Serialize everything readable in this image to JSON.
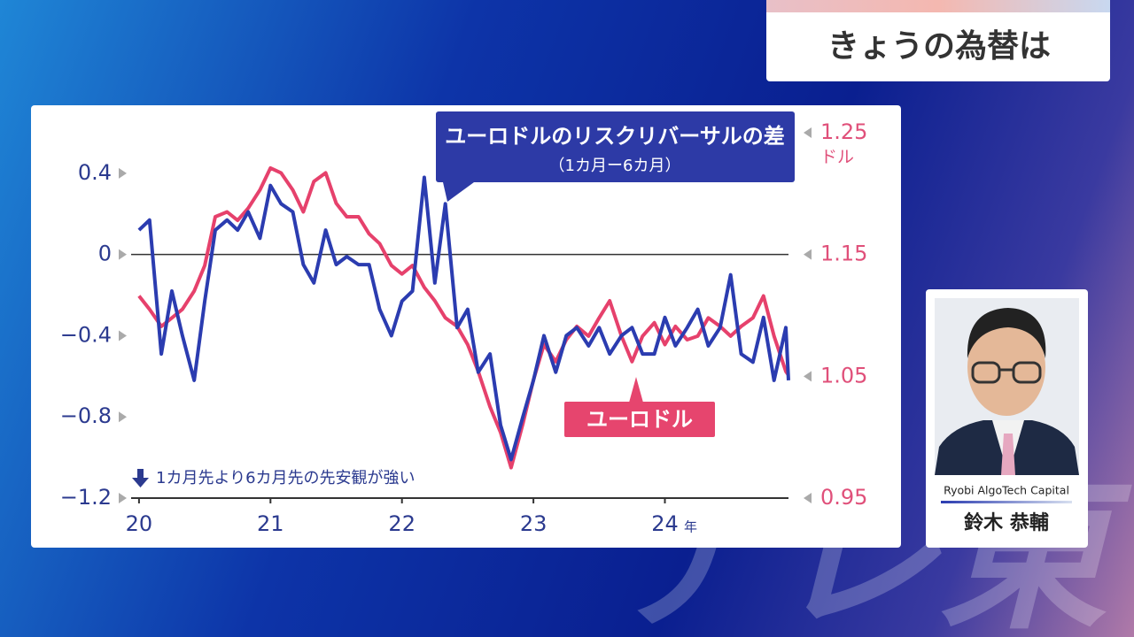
{
  "header": {
    "title": "きょうの為替は"
  },
  "watermark": "テレ東",
  "person": {
    "company": "Ryobi AlgoTech Capital",
    "name": "鈴木 恭輔"
  },
  "chart_data": {
    "type": "line",
    "x": [
      2020.0,
      2020.08,
      2020.17,
      2020.25,
      2020.33,
      2020.42,
      2020.5,
      2020.58,
      2020.67,
      2020.75,
      2020.83,
      2020.92,
      2021.0,
      2021.08,
      2021.17,
      2021.25,
      2021.33,
      2021.42,
      2021.5,
      2021.58,
      2021.67,
      2021.75,
      2021.83,
      2021.92,
      2022.0,
      2022.08,
      2022.17,
      2022.25,
      2022.33,
      2022.42,
      2022.5,
      2022.58,
      2022.67,
      2022.75,
      2022.83,
      2022.92,
      2023.0,
      2023.08,
      2023.17,
      2023.25,
      2023.33,
      2023.42,
      2023.5,
      2023.58,
      2023.67,
      2023.75,
      2023.83,
      2023.92,
      2024.0,
      2024.08,
      2024.17,
      2024.25,
      2024.33,
      2024.42,
      2024.5,
      2024.58,
      2024.67,
      2024.75,
      2024.83,
      2024.92,
      2024.94
    ],
    "series": [
      {
        "name": "ユーロドルのリスクリバーサルの差",
        "color": "#2b3cb0",
        "values": [
          0.12,
          0.17,
          -0.49,
          -0.18,
          -0.4,
          -0.62,
          -0.23,
          0.12,
          0.17,
          0.12,
          0.21,
          0.08,
          0.34,
          0.25,
          0.21,
          -0.05,
          -0.14,
          0.12,
          -0.05,
          -0.01,
          -0.05,
          -0.05,
          -0.27,
          -0.4,
          -0.23,
          -0.18,
          0.38,
          -0.14,
          0.25,
          -0.36,
          -0.27,
          -0.58,
          -0.49,
          -0.84,
          -1.01,
          -0.8,
          -0.62,
          -0.4,
          -0.58,
          -0.4,
          -0.36,
          -0.45,
          -0.36,
          -0.49,
          -0.4,
          -0.36,
          -0.49,
          -0.49,
          -0.31,
          -0.45,
          -0.36,
          -0.27,
          -0.45,
          -0.36,
          -0.1,
          -0.49,
          -0.53,
          -0.31,
          -0.62,
          -0.36,
          -0.62
        ]
      },
      {
        "name": "ユーロドル",
        "color": "#e6416c",
        "axis": "y2",
        "values": [
          1.116,
          1.105,
          1.091,
          1.098,
          1.105,
          1.12,
          1.141,
          1.181,
          1.185,
          1.178,
          1.188,
          1.203,
          1.221,
          1.217,
          1.203,
          1.185,
          1.21,
          1.217,
          1.192,
          1.181,
          1.181,
          1.167,
          1.159,
          1.141,
          1.134,
          1.141,
          1.123,
          1.112,
          1.098,
          1.091,
          1.076,
          1.054,
          1.025,
          1.004,
          0.975,
          1.011,
          1.047,
          1.076,
          1.062,
          1.08,
          1.091,
          1.083,
          1.098,
          1.112,
          1.083,
          1.062,
          1.083,
          1.094,
          1.076,
          1.091,
          1.08,
          1.083,
          1.098,
          1.091,
          1.083,
          1.091,
          1.098,
          1.116,
          1.083,
          1.054,
          1.051
        ]
      }
    ],
    "xlim": [
      2019.94,
      2024.94
    ],
    "xticks": [
      {
        "value": 2020,
        "label": "20"
      },
      {
        "value": 2021,
        "label": "21"
      },
      {
        "value": 2022,
        "label": "22"
      },
      {
        "value": 2023,
        "label": "23"
      },
      {
        "value": 2024,
        "label": "24"
      }
    ],
    "x_unit": "年",
    "ylim": [
      -1.2,
      0.6
    ],
    "yticks": [
      {
        "value": -1.2,
        "label": "−1.2"
      },
      {
        "value": -0.8,
        "label": "−0.8"
      },
      {
        "value": -0.4,
        "label": "−0.4"
      },
      0,
      0.4
    ],
    "y2lim": [
      0.95,
      1.25
    ],
    "y2ticks": [
      0.95,
      1.05,
      1.15,
      1.25
    ],
    "y2_unit": "ドル",
    "annotations": [
      "（1カ月ー6カ月）",
      "1カ月先より6カ月先の先安観が強い"
    ],
    "grid": false
  }
}
